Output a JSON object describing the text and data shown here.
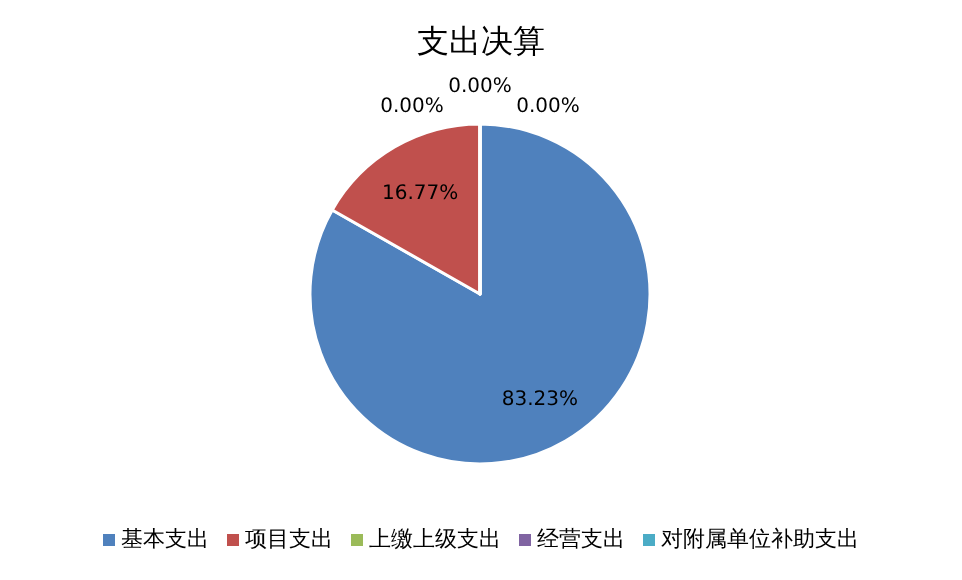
{
  "chart_data": {
    "type": "pie",
    "title": "支出决算",
    "categories": [
      "基本支出",
      "项目支出",
      "上缴上级支出",
      "经营支出",
      "对附属单位补助支出"
    ],
    "values": [
      83.23,
      16.77,
      0,
      0,
      0
    ],
    "colors": [
      "#4f81bd",
      "#c0504d",
      "#9bbb59",
      "#8064a2",
      "#4bacc6"
    ],
    "value_labels": [
      "83.23%",
      "16.77%",
      "0.00%",
      "0.00%",
      "0.00%"
    ],
    "legend": "bottom"
  }
}
